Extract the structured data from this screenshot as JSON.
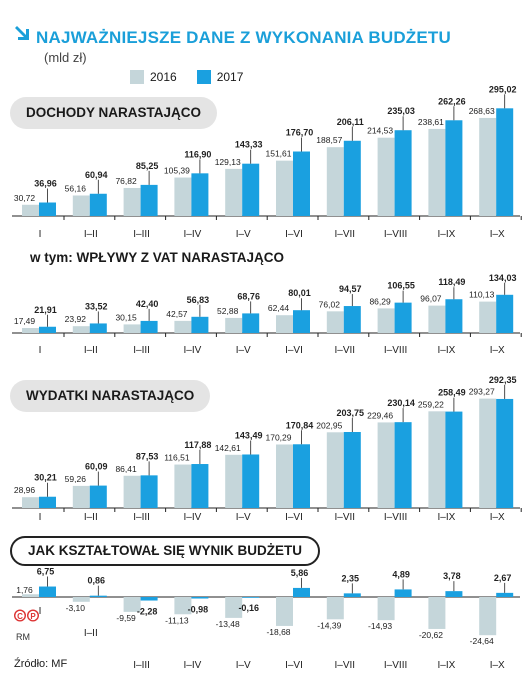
{
  "header": {
    "title": "NAJWAŻNIEJSZE DANE Z WYKONANIA BUDŻETU",
    "unit": "(mld zł)",
    "legend": [
      {
        "label": "2016",
        "color": "#c5d6da"
      },
      {
        "label": "2017",
        "color": "#1aa0e0"
      }
    ]
  },
  "footer": {
    "credit": "RM",
    "source": "Źródło: MF"
  },
  "chart_data": [
    {
      "type": "bar",
      "title": "DOCHODY NARASTAJĄCO",
      "categories": [
        "I",
        "I–II",
        "I–III",
        "I–IV",
        "I–V",
        "I–VI",
        "I–VII",
        "I–VIII",
        "I–IX",
        "I–X"
      ],
      "series": [
        {
          "name": "2016",
          "values": [
            30.72,
            56.16,
            76.82,
            105.39,
            129.13,
            151.61,
            188.57,
            214.53,
            238.61,
            268.63
          ],
          "labels": [
            "30,72",
            "56,16",
            "76,82",
            "105,39",
            "129,13",
            "151,61",
            "188,57",
            "214,53",
            "238,61",
            "268,63"
          ]
        },
        {
          "name": "2017",
          "values": [
            36.96,
            60.94,
            85.25,
            116.9,
            143.33,
            176.7,
            206.11,
            235.03,
            262.26,
            295.02
          ],
          "labels": [
            "36,96",
            "60,94",
            "85,25",
            "116,90",
            "143,33",
            "176,70",
            "206,11",
            "235,03",
            "262,26",
            "295,02"
          ]
        }
      ]
    },
    {
      "type": "bar",
      "title": "w tym: WPŁYWY Z VAT NARASTAJĄCO",
      "categories": [
        "I",
        "I–II",
        "I–III",
        "I–IV",
        "I–V",
        "I–VI",
        "I–VII",
        "I–VIII",
        "I–IX",
        "I–X"
      ],
      "series": [
        {
          "name": "2016",
          "values": [
            17.49,
            23.92,
            30.15,
            42.57,
            52.88,
            62.44,
            76.02,
            86.29,
            96.07,
            110.13
          ],
          "labels": [
            "17,49",
            "23,92",
            "30,15",
            "42,57",
            "52,88",
            "62,44",
            "76,02",
            "86,29",
            "96,07",
            "110,13"
          ]
        },
        {
          "name": "2017",
          "values": [
            21.91,
            33.52,
            42.4,
            56.83,
            68.76,
            80.01,
            94.57,
            106.55,
            118.49,
            134.03
          ],
          "labels": [
            "21,91",
            "33,52",
            "42,40",
            "56,83",
            "68,76",
            "80,01",
            "94,57",
            "106,55",
            "118,49",
            "134,03"
          ]
        }
      ]
    },
    {
      "type": "bar",
      "title": "WYDATKI NARASTAJĄCO",
      "categories": [
        "I",
        "I–II",
        "I–III",
        "I–IV",
        "I–V",
        "I–VI",
        "I–VII",
        "I–VIII",
        "I–IX",
        "I–X"
      ],
      "series": [
        {
          "name": "2016",
          "values": [
            28.96,
            59.26,
            86.41,
            116.51,
            142.61,
            170.29,
            202.95,
            229.46,
            259.22,
            293.27
          ],
          "labels": [
            "28,96",
            "59,26",
            "86,41",
            "116,51",
            "142,61",
            "170,29",
            "202,95",
            "229,46",
            "259,22",
            "293,27"
          ]
        },
        {
          "name": "2017",
          "values": [
            30.21,
            60.09,
            87.53,
            117.88,
            143.49,
            170.84,
            203.75,
            230.14,
            258.49,
            292.35
          ],
          "labels": [
            "30,21",
            "60,09",
            "87,53",
            "117,88",
            "143,49",
            "170,84",
            "203,75",
            "230,14",
            "258,49",
            "292,35"
          ]
        }
      ]
    },
    {
      "type": "bar",
      "title": "JAK KSZTAŁTOWAŁ SIĘ WYNIK BUDŻETU",
      "categories": [
        "I",
        "I–II",
        "I–III",
        "I–IV",
        "I–V",
        "I–VI",
        "I–VII",
        "I–VIII",
        "I–IX",
        "I–X"
      ],
      "series": [
        {
          "name": "2016",
          "values": [
            1.76,
            -3.1,
            -9.59,
            -11.13,
            -13.48,
            -18.68,
            -14.39,
            -14.93,
            -20.62,
            -24.64
          ],
          "labels": [
            "1,76",
            "-3,10",
            "-9,59",
            "-11,13",
            "-13,48",
            "-18,68",
            "-14,39",
            "-14,93",
            "-20,62",
            "-24,64"
          ]
        },
        {
          "name": "2017",
          "values": [
            6.75,
            0.86,
            -2.28,
            -0.98,
            -0.16,
            5.86,
            2.35,
            4.89,
            3.78,
            2.67
          ],
          "labels": [
            "6,75",
            "0,86",
            "-2,28",
            "-0,98",
            "-0,16",
            "5,86",
            "2,35",
            "4,89",
            "3,78",
            "2,67"
          ]
        }
      ]
    }
  ]
}
